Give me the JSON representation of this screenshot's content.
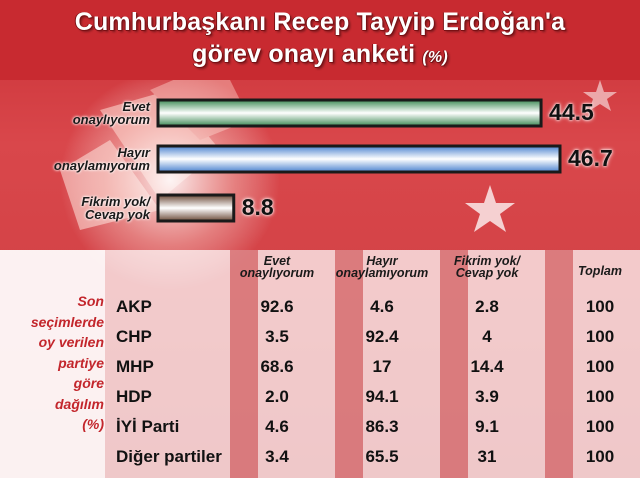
{
  "title": {
    "line1": "Cumhurbaşkanı Recep Tayyip Erdoğan'a",
    "line2": "görev onayı anketi",
    "unit": "(%)"
  },
  "colors": {
    "red": "#c82a30",
    "green": "#3e8a55",
    "blue": "#4b82cf",
    "brown": "#6b4a38",
    "accent_text": "#c3262c"
  },
  "chart_data": [
    {
      "type": "bar",
      "orientation": "horizontal",
      "categories": [
        "Evet onaylıyorum",
        "Hayır onaylamıyorum",
        "Fikrim yok/ Cevap yok"
      ],
      "category_lines": [
        [
          "Evet",
          "onaylıyorum"
        ],
        [
          "Hayır",
          "onaylamıyorum"
        ],
        [
          "Fikrim yok/",
          "Cevap yok"
        ]
      ],
      "values": [
        44.5,
        46.7,
        8.8
      ],
      "value_labels": [
        "44.5",
        "46.7",
        "8.8"
      ],
      "bar_colors": [
        "#3e8a55",
        "#4b82cf",
        "#6b4a38"
      ],
      "xlim": [
        0,
        46.7
      ],
      "grid": false,
      "title": "Cumhurbaşkanı Recep Tayyip Erdoğan'a görev onayı anketi (%)"
    },
    {
      "type": "table",
      "side_label": [
        "Son",
        "seçimlerde",
        "oy verilen",
        "partiye",
        "göre",
        "dağılım",
        "(%)"
      ],
      "columns": [
        [
          "Evet",
          "onaylıyorum"
        ],
        [
          "Hayır",
          "onaylamıyorum"
        ],
        [
          "Fikrim yok/",
          "Cevap yok"
        ],
        [
          "Toplam"
        ]
      ],
      "rows": [
        {
          "party": "AKP",
          "values": [
            "92.6",
            "4.6",
            "2.8",
            "100"
          ]
        },
        {
          "party": "CHP",
          "values": [
            "3.5",
            "92.4",
            "4",
            "100"
          ]
        },
        {
          "party": "MHP",
          "values": [
            "68.6",
            "17",
            "14.4",
            "100"
          ]
        },
        {
          "party": "HDP",
          "values": [
            "2.0",
            "94.1",
            "3.9",
            "100"
          ]
        },
        {
          "party": "İYİ Parti",
          "values": [
            "4.6",
            "86.3",
            "9.1",
            "100"
          ]
        },
        {
          "party": "Diğer partiler",
          "values": [
            "3.4",
            "65.5",
            "31",
            "100"
          ]
        }
      ]
    }
  ]
}
